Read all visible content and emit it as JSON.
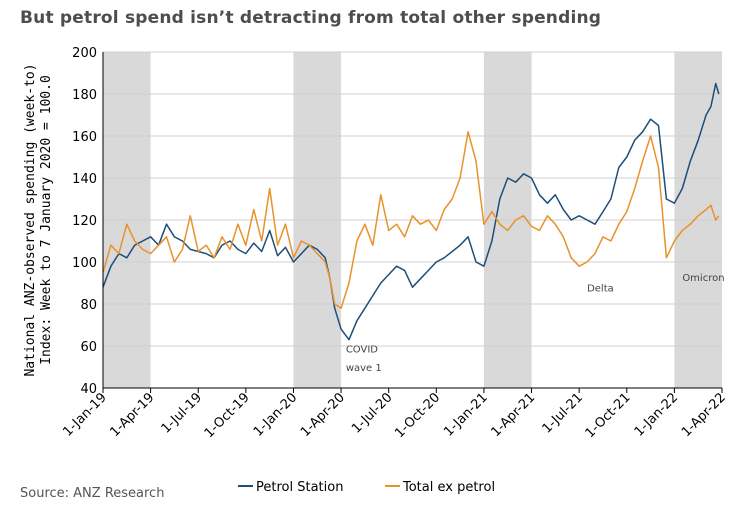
{
  "title": "But petrol spend isn’t detracting from total other spending",
  "source": "Source: ANZ Research",
  "chart_data": {
    "type": "line",
    "ylabel_line1": "National ANZ-observed spending (week-to)",
    "ylabel_line2": "Index: Week to 7 January 2020 = 100.0",
    "ylim": [
      40,
      200
    ],
    "yticks": [
      40,
      60,
      80,
      100,
      120,
      140,
      160,
      180,
      200
    ],
    "xlim": [
      0,
      39
    ],
    "xtick_labels": [
      "1-Jan-19",
      "1-Apr-19",
      "1-Jul-19",
      "1-Oct-19",
      "1-Jan-20",
      "1-Apr-20",
      "1-Jul-20",
      "1-Oct-20",
      "1-Jan-21",
      "1-Apr-21",
      "1-Jul-21",
      "1-Oct-21",
      "1-Jan-22",
      "1-Apr-22"
    ],
    "x_unit": "months since 1-Jan-19",
    "shaded_periods": [
      [
        0,
        3
      ],
      [
        12,
        15
      ],
      [
        24,
        27
      ],
      [
        36,
        39
      ]
    ],
    "series": [
      {
        "name": "Petrol Station",
        "color": "#1f4e79",
        "x": [
          0,
          0.5,
          1,
          1.5,
          2,
          2.5,
          3,
          3.5,
          4,
          4.5,
          5,
          5.5,
          6,
          6.5,
          7,
          7.5,
          8,
          8.5,
          9,
          9.5,
          10,
          10.5,
          11,
          11.5,
          12,
          12.5,
          13,
          13.5,
          14,
          14.3,
          14.6,
          15,
          15.5,
          16,
          16.5,
          17,
          17.5,
          18,
          18.5,
          19,
          19.5,
          20,
          20.5,
          21,
          21.5,
          22,
          22.5,
          23,
          23.5,
          24,
          24.5,
          25,
          25.5,
          26,
          26.5,
          27,
          27.5,
          28,
          28.5,
          29,
          29.5,
          30,
          30.5,
          31,
          31.5,
          32,
          32.5,
          33,
          33.5,
          34,
          34.5,
          35,
          35.5,
          36,
          36.5,
          37,
          37.5,
          38,
          38.3,
          38.6,
          38.8
        ],
        "values": [
          88,
          98,
          104,
          102,
          108,
          110,
          112,
          108,
          118,
          112,
          110,
          106,
          105,
          104,
          102,
          108,
          110,
          106,
          104,
          109,
          105,
          115,
          103,
          107,
          100,
          104,
          108,
          106,
          102,
          92,
          78,
          68,
          63,
          72,
          78,
          84,
          90,
          94,
          98,
          96,
          88,
          92,
          96,
          100,
          102,
          105,
          108,
          112,
          100,
          98,
          110,
          130,
          140,
          138,
          142,
          140,
          132,
          128,
          132,
          125,
          120,
          122,
          120,
          118,
          124,
          130,
          145,
          150,
          158,
          162,
          168,
          165,
          130,
          128,
          135,
          148,
          158,
          170,
          174,
          185,
          180
        ]
      },
      {
        "name": "Total ex petrol",
        "color": "#e8922b",
        "x": [
          0,
          0.5,
          1,
          1.5,
          2,
          2.5,
          3,
          3.5,
          4,
          4.5,
          5,
          5.5,
          6,
          6.5,
          7,
          7.5,
          8,
          8.5,
          9,
          9.5,
          10,
          10.5,
          11,
          11.5,
          12,
          12.5,
          13,
          13.5,
          14,
          14.3,
          14.6,
          15,
          15.5,
          16,
          16.5,
          17,
          17.5,
          18,
          18.5,
          19,
          19.5,
          20,
          20.5,
          21,
          21.5,
          22,
          22.5,
          23,
          23.5,
          24,
          24.5,
          25,
          25.5,
          26,
          26.5,
          27,
          27.5,
          28,
          28.5,
          29,
          29.5,
          30,
          30.5,
          31,
          31.5,
          32,
          32.5,
          33,
          33.5,
          34,
          34.5,
          35,
          35.5,
          36,
          36.5,
          37,
          37.5,
          38,
          38.3,
          38.6,
          38.8
        ],
        "values": [
          95,
          108,
          104,
          118,
          110,
          106,
          104,
          108,
          112,
          100,
          106,
          122,
          105,
          108,
          102,
          112,
          106,
          118,
          108,
          125,
          110,
          135,
          108,
          118,
          102,
          110,
          108,
          104,
          100,
          92,
          80,
          78,
          90,
          110,
          118,
          108,
          132,
          115,
          118,
          112,
          122,
          118,
          120,
          115,
          125,
          130,
          140,
          162,
          148,
          118,
          124,
          118,
          115,
          120,
          122,
          117,
          115,
          122,
          118,
          112,
          102,
          98,
          100,
          104,
          112,
          110,
          118,
          124,
          135,
          148,
          160,
          145,
          102,
          110,
          115,
          118,
          122,
          125,
          127,
          120,
          122
        ]
      }
    ],
    "annotations": [
      {
        "text": "COVID",
        "x": 15.3,
        "y": 57
      },
      {
        "text": "wave 1",
        "x": 15.3,
        "y": 48
      },
      {
        "text": "Delta",
        "x": 30.5,
        "y": 86
      },
      {
        "text": "Omicron",
        "x": 36.5,
        "y": 91
      }
    ]
  }
}
